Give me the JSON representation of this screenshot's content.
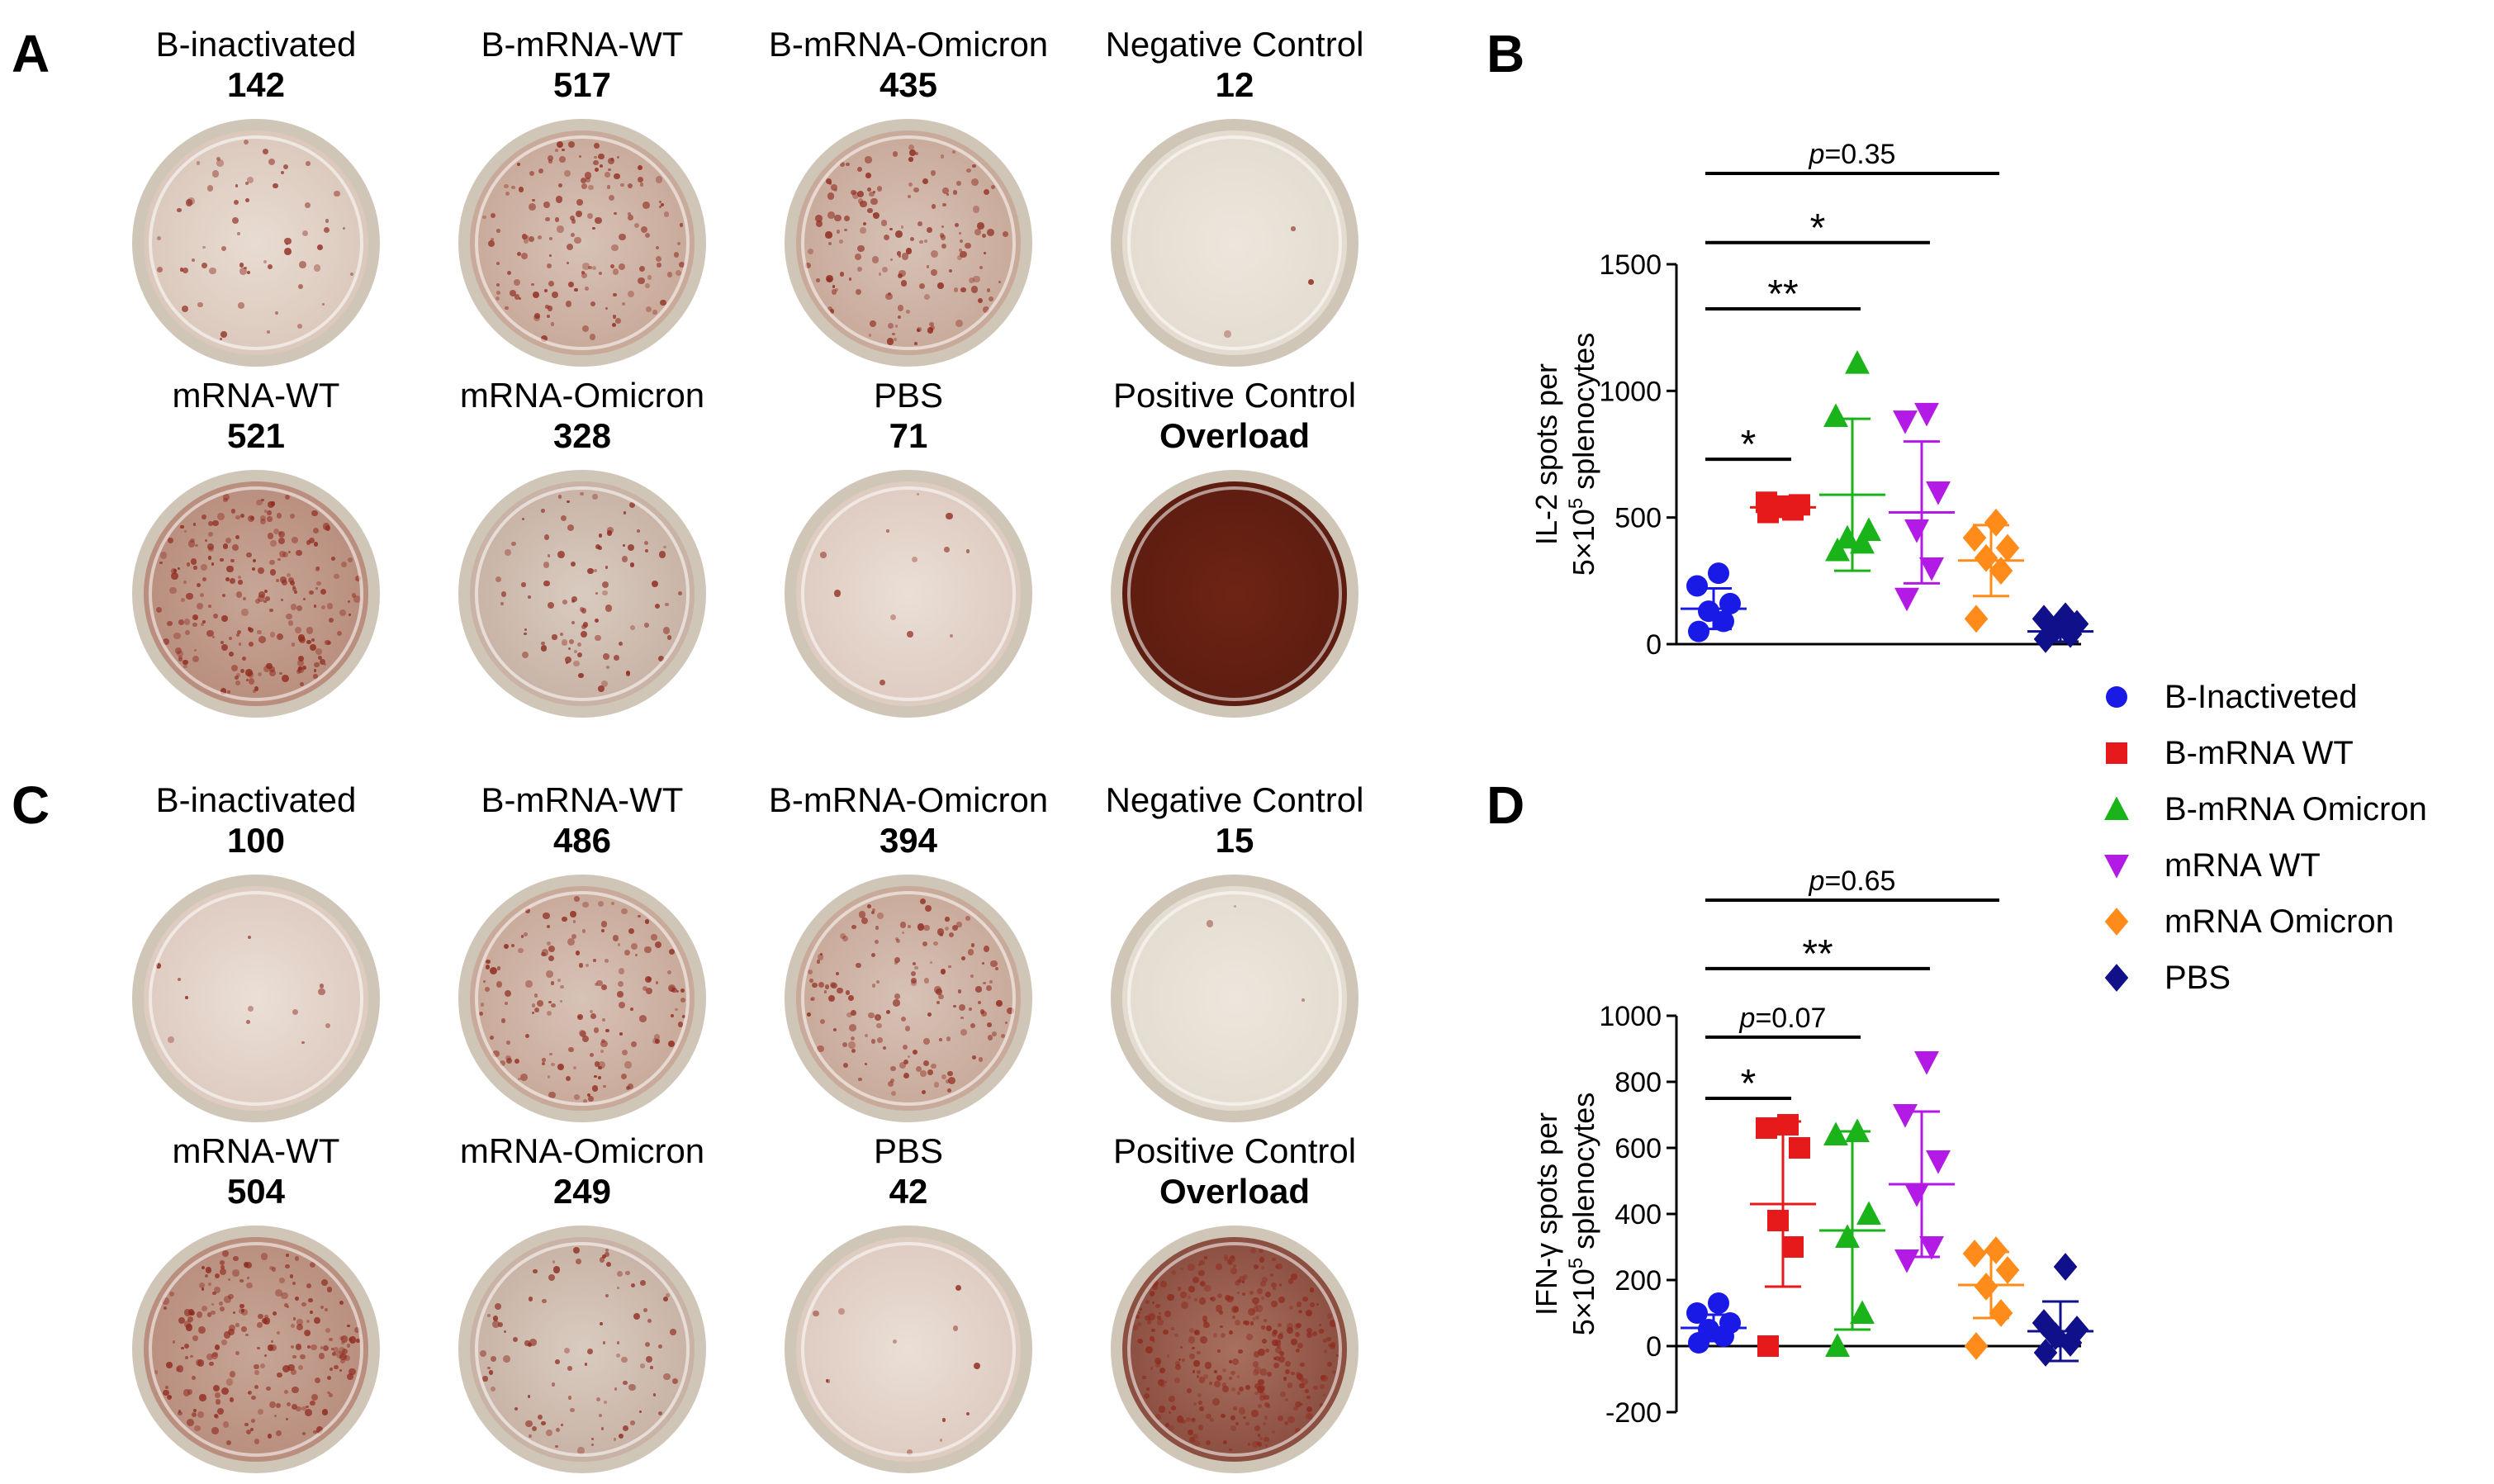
{
  "panels": {
    "A": {
      "letter": "A",
      "wells": [
        {
          "name": "B-inactivated",
          "count": "142",
          "intensity": "light-spots"
        },
        {
          "name": "B-mRNA-WT",
          "count": "517",
          "intensity": "many-spots"
        },
        {
          "name": "B-mRNA-Omicron",
          "count": "435",
          "intensity": "many-spots"
        },
        {
          "name": "Negative Control",
          "count": "12",
          "intensity": "clean"
        },
        {
          "name": "mRNA-WT",
          "count": "521",
          "intensity": "dense"
        },
        {
          "name": "mRNA-Omicron",
          "count": "328",
          "intensity": "medium"
        },
        {
          "name": "PBS",
          "count": "71",
          "intensity": "faint"
        },
        {
          "name": "Positive Control",
          "count": "Overload",
          "intensity": "overload"
        }
      ]
    },
    "C": {
      "letter": "C",
      "wells": [
        {
          "name": "B-inactivated",
          "count": "100",
          "intensity": "faint"
        },
        {
          "name": "B-mRNA-WT",
          "count": "486",
          "intensity": "many-spots"
        },
        {
          "name": "B-mRNA-Omicron",
          "count": "394",
          "intensity": "many-spots"
        },
        {
          "name": "Negative Control",
          "count": "15",
          "intensity": "clean"
        },
        {
          "name": "mRNA-WT",
          "count": "504",
          "intensity": "dense"
        },
        {
          "name": "mRNA-Omicron",
          "count": "249",
          "intensity": "medium"
        },
        {
          "name": "PBS",
          "count": "42",
          "intensity": "faint"
        },
        {
          "name": "Positive Control",
          "count": "Overload",
          "intensity": "heavy-spots"
        }
      ]
    },
    "B": {
      "letter": "B"
    },
    "D": {
      "letter": "D"
    }
  },
  "colors": {
    "B-Inactiveted": "#1a1ae6",
    "B-mRNA WT": "#e61a1a",
    "B-mRNA Omicron": "#1ab31a",
    "mRNA WT": "#b31ae6",
    "mRNA Omicron": "#ff8c1a",
    "PBS": "#10108a"
  },
  "legend": [
    {
      "label": "B-Inactiveted",
      "marker": "circle",
      "color": "#1a1ae6"
    },
    {
      "label": "B-mRNA WT",
      "marker": "square",
      "color": "#e61a1a"
    },
    {
      "label": "B-mRNA Omicron",
      "marker": "triangle-up",
      "color": "#1ab31a"
    },
    {
      "label": "mRNA WT",
      "marker": "triangle-down",
      "color": "#b31ae6"
    },
    {
      "label": "mRNA Omicron",
      "marker": "diamond",
      "color": "#ff8c1a"
    },
    {
      "label": "PBS",
      "marker": "diamond",
      "color": "#10108a"
    }
  ],
  "chart_data": [
    {
      "panel": "B",
      "type": "scatter",
      "ylabel_line1": "IL-2 spots per",
      "ylabel_line2_prefix": "5×10",
      "ylabel_line2_sup": "5",
      "ylabel_line2_suffix": " splenocytes",
      "ylim": [
        0,
        1500
      ],
      "yticks": [
        0,
        500,
        1000,
        1500
      ],
      "tick_labels": [
        "0",
        "500",
        "1000",
        "1500"
      ],
      "groups": [
        {
          "name": "B-Inactiveted",
          "marker": "circle",
          "mean": 140,
          "sd": 80,
          "values": [
            50,
            90,
            130,
            160,
            230,
            280
          ]
        },
        {
          "name": "B-mRNA WT",
          "marker": "square",
          "mean": 540,
          "sd": 20,
          "values": [
            520,
            530,
            540,
            550,
            560,
            545
          ]
        },
        {
          "name": "B-mRNA Omicron",
          "marker": "triangle-up",
          "mean": 590,
          "sd": 300,
          "values": [
            370,
            400,
            420,
            450,
            900,
            1110
          ]
        },
        {
          "name": "mRNA WT",
          "marker": "triangle-down",
          "mean": 520,
          "sd": 280,
          "values": [
            180,
            300,
            450,
            600,
            880,
            910
          ]
        },
        {
          "name": "mRNA Omicron",
          "marker": "diamond",
          "mean": 330,
          "sd": 140,
          "values": [
            100,
            290,
            340,
            380,
            420,
            480
          ]
        },
        {
          "name": "PBS",
          "marker": "diamond",
          "mean": 50,
          "sd": 40,
          "values": [
            20,
            40,
            60,
            80,
            100,
            110
          ]
        }
      ],
      "comparisons": [
        {
          "from": 0,
          "to": 1,
          "label": "*",
          "y": 730
        },
        {
          "from": 0,
          "to": 2,
          "label": "**",
          "y": 1230
        },
        {
          "from": 0,
          "to": 3,
          "label": "*",
          "y": 1450
        },
        {
          "from": 0,
          "to": 4,
          "label_prefix": "p",
          "label_value": "=0.35",
          "y": 1680
        }
      ]
    },
    {
      "panel": "D",
      "type": "scatter",
      "ylabel_line1": "IFN-γ spots per",
      "ylabel_line2_prefix": "5×10",
      "ylabel_line2_sup": "5",
      "ylabel_line2_suffix": " splenocytes",
      "ylim": [
        -200,
        1000
      ],
      "yticks": [
        -200,
        0,
        200,
        400,
        600,
        800,
        1000
      ],
      "tick_labels": [
        "-200",
        "0",
        "200",
        "400",
        "600",
        "800",
        "1000"
      ],
      "groups": [
        {
          "name": "B-Inactiveted",
          "marker": "circle",
          "mean": 55,
          "sd": 40,
          "values": [
            10,
            30,
            50,
            70,
            100,
            130
          ]
        },
        {
          "name": "B-mRNA WT",
          "marker": "square",
          "mean": 430,
          "sd": 250,
          "values": [
            0,
            300,
            380,
            600,
            660,
            670
          ]
        },
        {
          "name": "B-mRNA Omicron",
          "marker": "triangle-up",
          "mean": 350,
          "sd": 300,
          "values": [
            0,
            100,
            330,
            400,
            640,
            650
          ]
        },
        {
          "name": "mRNA WT",
          "marker": "triangle-down",
          "mean": 490,
          "sd": 220,
          "values": [
            260,
            300,
            460,
            560,
            700,
            860
          ]
        },
        {
          "name": "mRNA Omicron",
          "marker": "diamond",
          "mean": 185,
          "sd": 100,
          "values": [
            0,
            100,
            180,
            230,
            280,
            290
          ]
        },
        {
          "name": "PBS",
          "marker": "diamond",
          "mean": 45,
          "sd": 90,
          "values": [
            -20,
            10,
            30,
            50,
            70,
            240
          ]
        }
      ],
      "comparisons": [
        {
          "from": 0,
          "to": 1,
          "label": "*",
          "y": 750
        },
        {
          "from": 0,
          "to": 2,
          "label_prefix": "p",
          "label_value": "=0.07",
          "y": 920
        },
        {
          "from": 0,
          "to": 3,
          "label": "**",
          "y": 1110
        },
        {
          "from": 0,
          "to": 4,
          "label_prefix": "p",
          "label_value": "=0.65",
          "y": 1300
        }
      ]
    }
  ]
}
